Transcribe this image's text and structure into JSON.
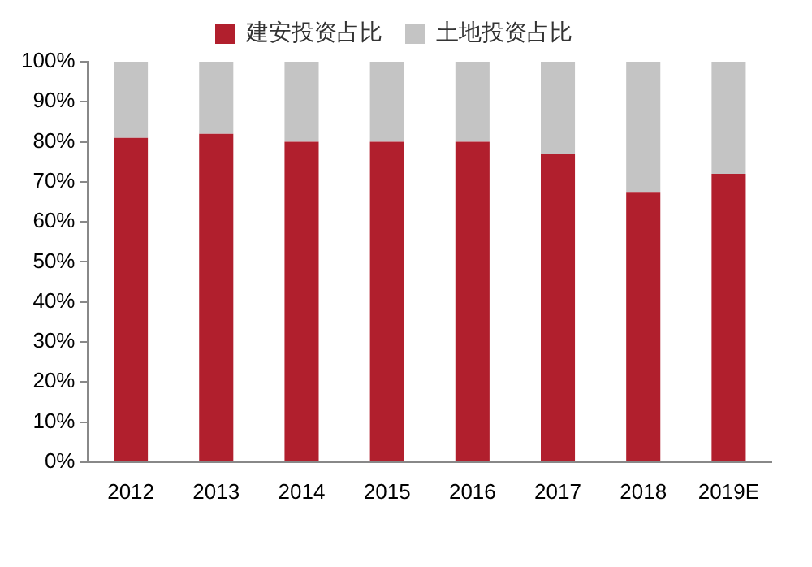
{
  "chart_data": {
    "type": "bar",
    "stacked": true,
    "categories": [
      "2012",
      "2013",
      "2014",
      "2015",
      "2016",
      "2017",
      "2018",
      "2019E"
    ],
    "series": [
      {
        "name": "建安投资占比",
        "color": "#b11f2d",
        "values": [
          81,
          82,
          80,
          80,
          80,
          77,
          67.5,
          72
        ]
      },
      {
        "name": "土地投资占比",
        "color": "#c4c4c4",
        "values": [
          19,
          18,
          20,
          20,
          20,
          23,
          32.5,
          28
        ]
      }
    ],
    "ylim": [
      0,
      100
    ],
    "yticks": [
      {
        "value": 0,
        "label": "0%"
      },
      {
        "value": 10,
        "label": "10%"
      },
      {
        "value": 20,
        "label": "20%"
      },
      {
        "value": 30,
        "label": "30%"
      },
      {
        "value": 40,
        "label": "40%"
      },
      {
        "value": 50,
        "label": "50%"
      },
      {
        "value": 60,
        "label": "60%"
      },
      {
        "value": 70,
        "label": "70%"
      },
      {
        "value": 80,
        "label": "80%"
      },
      {
        "value": 90,
        "label": "90%"
      },
      {
        "value": 100,
        "label": "100%"
      }
    ],
    "grid": false,
    "legend": "top"
  }
}
